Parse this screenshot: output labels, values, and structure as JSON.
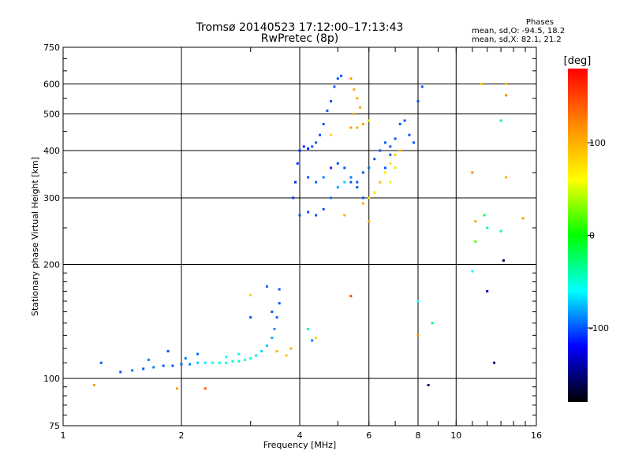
{
  "chart_data": {
    "type": "scatter",
    "title": "Tromsø 20140523 17:12:00–17:13:43",
    "subtitle": "RwPretec (8p)",
    "xlabel": "Frequency [MHz]",
    "ylabel": "Stationary phase Virtual Height [km]",
    "xscale": "log",
    "yscale": "log",
    "xlim": [
      1,
      16
    ],
    "ylim": [
      75,
      750
    ],
    "grid": true,
    "x_ticks": [
      1,
      2,
      4,
      6,
      8,
      10,
      16
    ],
    "x_tick_labels": [
      "1",
      "2",
      "4",
      "6",
      "8",
      "10",
      "16"
    ],
    "y_ticks": [
      75,
      100,
      200,
      300,
      400,
      500,
      600,
      750
    ],
    "y_tick_labels": [
      "75",
      "100",
      "200",
      "300",
      "400",
      "500",
      "600",
      "750"
    ],
    "phase_box": {
      "title": "Phases",
      "line1": "mean, sd,O: -94.5, 18.2",
      "line2": "mean, sd,X:  82.1, 21.2"
    },
    "colorbar": {
      "label": "[deg]",
      "range": [
        -180,
        180
      ],
      "ticks": [
        100,
        0,
        -100
      ],
      "tick_labels": [
        "100",
        "0",
        "-100"
      ],
      "palette": [
        "#ff0000",
        "#ff8800",
        "#ffff00",
        "#00ff00",
        "#00ffff",
        "#0000ff",
        "#000000"
      ]
    },
    "series": [
      {
        "points": [
          [
            1.4,
            104,
            -100
          ],
          [
            1.5,
            105,
            -95
          ],
          [
            1.6,
            106,
            -100
          ],
          [
            1.7,
            107,
            -90
          ],
          [
            1.8,
            108,
            -95
          ],
          [
            1.9,
            108,
            -100
          ],
          [
            2.0,
            109,
            -95
          ],
          [
            2.1,
            109,
            -90
          ],
          [
            2.2,
            110,
            -70
          ],
          [
            2.3,
            110,
            -65
          ],
          [
            2.4,
            110,
            -60
          ],
          [
            2.5,
            110,
            -55
          ],
          [
            2.6,
            110,
            -50
          ],
          [
            2.7,
            111,
            -50
          ],
          [
            2.8,
            111,
            -45
          ],
          [
            2.9,
            112,
            -50
          ],
          [
            3.0,
            113,
            -60
          ],
          [
            3.1,
            115,
            -65
          ],
          [
            3.2,
            118,
            -70
          ],
          [
            3.3,
            122,
            -75
          ],
          [
            3.4,
            128,
            -80
          ],
          [
            3.45,
            135,
            -85
          ],
          [
            3.5,
            145,
            -95
          ],
          [
            3.55,
            158,
            -100
          ],
          [
            3.55,
            172,
            -100
          ],
          [
            1.65,
            112,
            -90
          ],
          [
            1.85,
            118,
            -100
          ],
          [
            2.05,
            113,
            -90
          ],
          [
            2.2,
            116,
            -95
          ],
          [
            2.6,
            114,
            -60
          ],
          [
            2.8,
            116,
            -50
          ],
          [
            3.0,
            166,
            80
          ],
          [
            3.0,
            145,
            -100
          ],
          [
            3.3,
            175,
            -95
          ],
          [
            3.4,
            150,
            -100
          ],
          [
            1.25,
            110,
            -100
          ],
          [
            1.2,
            96,
            110
          ]
        ]
      },
      {
        "points": [
          [
            3.85,
            300,
            -110
          ],
          [
            3.9,
            330,
            -110
          ],
          [
            3.95,
            370,
            -110
          ],
          [
            4.0,
            400,
            -110
          ],
          [
            4.1,
            410,
            -110
          ],
          [
            4.2,
            405,
            -110
          ],
          [
            4.3,
            410,
            -100
          ],
          [
            4.4,
            420,
            -100
          ],
          [
            4.5,
            440,
            -100
          ],
          [
            4.6,
            470,
            -100
          ],
          [
            4.7,
            510,
            -100
          ],
          [
            4.8,
            540,
            -100
          ],
          [
            4.9,
            590,
            -100
          ],
          [
            5.0,
            620,
            -100
          ],
          [
            5.1,
            630,
            -100
          ],
          [
            4.0,
            270,
            -100
          ],
          [
            4.2,
            275,
            -100
          ],
          [
            4.4,
            270,
            -100
          ],
          [
            4.6,
            280,
            -100
          ],
          [
            4.8,
            300,
            -90
          ],
          [
            5.0,
            320,
            -80
          ],
          [
            5.2,
            330,
            -70
          ],
          [
            5.4,
            330,
            -100
          ],
          [
            5.6,
            320,
            -100
          ],
          [
            5.8,
            300,
            -100
          ],
          [
            6.0,
            300,
            -90
          ],
          [
            6.2,
            310,
            -80
          ],
          [
            6.4,
            330,
            -100
          ],
          [
            6.6,
            360,
            -100
          ],
          [
            6.8,
            390,
            -100
          ],
          [
            7.0,
            430,
            -100
          ],
          [
            7.2,
            470,
            -100
          ],
          [
            7.4,
            480,
            -100
          ],
          [
            7.6,
            440,
            -100
          ],
          [
            7.8,
            420,
            -100
          ],
          [
            8.0,
            540,
            -100
          ],
          [
            4.2,
            340,
            -100
          ],
          [
            4.4,
            330,
            -95
          ],
          [
            4.6,
            340,
            -90
          ],
          [
            4.8,
            360,
            -110
          ],
          [
            5.0,
            370,
            -100
          ],
          [
            5.2,
            360,
            -100
          ],
          [
            5.4,
            340,
            -90
          ],
          [
            5.6,
            330,
            -100
          ],
          [
            5.8,
            350,
            -100
          ],
          [
            6.0,
            360,
            -95
          ],
          [
            6.2,
            380,
            -100
          ],
          [
            6.4,
            400,
            -100
          ],
          [
            6.6,
            420,
            -100
          ],
          [
            6.8,
            410,
            -100
          ]
        ]
      },
      {
        "points": [
          [
            5.4,
            620,
            110
          ],
          [
            5.5,
            580,
            105
          ],
          [
            5.6,
            550,
            100
          ],
          [
            5.7,
            520,
            105
          ],
          [
            5.5,
            500,
            100
          ],
          [
            5.4,
            460,
            110
          ],
          [
            5.6,
            460,
            100
          ],
          [
            5.8,
            470,
            110
          ],
          [
            5.8,
            290,
            100
          ],
          [
            6.0,
            300,
            70
          ],
          [
            6.2,
            310,
            60
          ],
          [
            6.4,
            330,
            80
          ],
          [
            6.6,
            350,
            70
          ],
          [
            6.8,
            370,
            75
          ],
          [
            7.0,
            390,
            80
          ],
          [
            7.2,
            400,
            90
          ],
          [
            6.8,
            330,
            60
          ],
          [
            7.0,
            360,
            50
          ],
          [
            5.2,
            270,
            100
          ],
          [
            4.8,
            440,
            80
          ],
          [
            6.0,
            260,
            100
          ],
          [
            11.2,
            260,
            110
          ],
          [
            11.6,
            600,
            80
          ],
          [
            13.4,
            600,
            90
          ],
          [
            13.4,
            560,
            120
          ],
          [
            13.4,
            340,
            100
          ],
          [
            11.0,
            350,
            120
          ],
          [
            14.8,
            265,
            110
          ],
          [
            8.0,
            130,
            120
          ],
          [
            5.4,
            165,
            150
          ],
          [
            3.8,
            120,
            100
          ],
          [
            3.7,
            115,
            90
          ],
          [
            3.5,
            118,
            100
          ],
          [
            6.0,
            480,
            70
          ],
          [
            2.3,
            94,
            140
          ],
          [
            1.95,
            94,
            110
          ]
        ]
      },
      {
        "points": [
          [
            13.0,
            480,
            -30
          ],
          [
            12.0,
            250,
            -40
          ],
          [
            11.2,
            230,
            20
          ],
          [
            11.8,
            270,
            -20
          ],
          [
            13.0,
            245,
            -40
          ],
          [
            11.0,
            192,
            -60
          ],
          [
            8.7,
            140,
            -30
          ],
          [
            12.5,
            110,
            -150
          ],
          [
            8.5,
            96,
            -150
          ],
          [
            12.0,
            170,
            -130
          ],
          [
            13.2,
            205,
            -160
          ],
          [
            4.2,
            135,
            -40
          ],
          [
            4.4,
            128,
            80
          ],
          [
            4.3,
            126,
            -90
          ],
          [
            8.2,
            590,
            -100
          ],
          [
            8.0,
            160,
            -60
          ]
        ]
      }
    ]
  }
}
